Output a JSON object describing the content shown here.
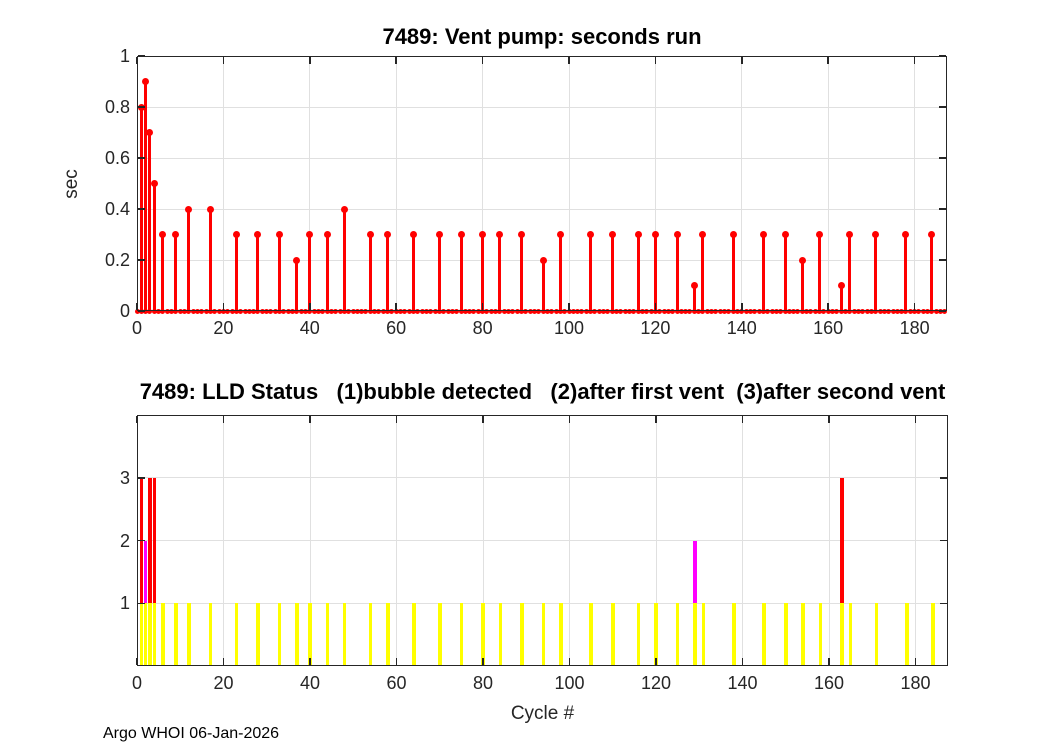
{
  "footer": {
    "credit": "Argo WHOI 06-Jan-2026"
  },
  "colors": {
    "stem": "#ff0000",
    "status1_bubble_detected": "#ffff00",
    "status2_after_first_vent": "#ff00ff",
    "status3_after_second_vent": "#ff0000",
    "grid": "#e0e0e0",
    "axis": "#262626"
  },
  "chart_data": [
    {
      "type": "stem",
      "title": "7489: Vent pump: seconds run",
      "ylabel": "sec",
      "xlabel": "",
      "xlim": [
        0,
        187.5
      ],
      "ylim": [
        0,
        1
      ],
      "xticks": [
        0,
        20,
        40,
        60,
        80,
        100,
        120,
        140,
        160,
        180
      ],
      "yticks": [
        0,
        0.2,
        0.4,
        0.6,
        0.8,
        1
      ],
      "grid": true,
      "stem_color": "#ff0000",
      "zero_marker_cycle_range": [
        0,
        187
      ],
      "x": [
        1,
        2,
        3,
        4,
        6,
        9,
        12,
        17,
        23,
        28,
        33,
        37,
        40,
        44,
        48,
        54,
        58,
        64,
        70,
        75,
        80,
        84,
        89,
        94,
        98,
        105,
        110,
        116,
        120,
        125,
        129,
        131,
        138,
        145,
        150,
        154,
        158,
        163,
        165,
        171,
        178,
        184
      ],
      "y": [
        0.8,
        0.9,
        0.7,
        0.5,
        0.3,
        0.3,
        0.4,
        0.4,
        0.3,
        0.3,
        0.3,
        0.2,
        0.3,
        0.3,
        0.4,
        0.3,
        0.3,
        0.3,
        0.3,
        0.3,
        0.3,
        0.3,
        0.3,
        0.2,
        0.3,
        0.3,
        0.3,
        0.3,
        0.3,
        0.3,
        0.1,
        0.3,
        0.3,
        0.3,
        0.3,
        0.2,
        0.3,
        0.1,
        0.3,
        0.3,
        0.3,
        0.3
      ]
    },
    {
      "type": "bar",
      "title": "7489: LLD Status   (1)bubble detected   (2)after first vent  (3)after second vent",
      "xlabel": "Cycle #",
      "ylabel": "",
      "xlim": [
        0,
        187.5
      ],
      "ylim": [
        0,
        4
      ],
      "xticks": [
        0,
        20,
        40,
        60,
        80,
        100,
        120,
        140,
        160,
        180
      ],
      "yticks": [
        1,
        2,
        3
      ],
      "grid": true,
      "series": [
        {
          "name": "after second vent",
          "value": 3,
          "color": "#ff0000",
          "cycles": [
            1,
            3,
            4,
            163
          ]
        },
        {
          "name": "after first vent",
          "value": 2,
          "color": "#ff00ff",
          "cycles": [
            2,
            129
          ]
        },
        {
          "name": "bubble detected",
          "value": 1,
          "color": "#ffff00",
          "cycles": [
            1,
            2,
            3,
            4,
            6,
            9,
            12,
            17,
            23,
            28,
            33,
            37,
            40,
            44,
            48,
            54,
            58,
            64,
            70,
            75,
            80,
            84,
            89,
            94,
            98,
            105,
            110,
            116,
            120,
            125,
            129,
            131,
            138,
            145,
            150,
            154,
            158,
            163,
            165,
            171,
            178,
            184
          ]
        }
      ]
    }
  ]
}
